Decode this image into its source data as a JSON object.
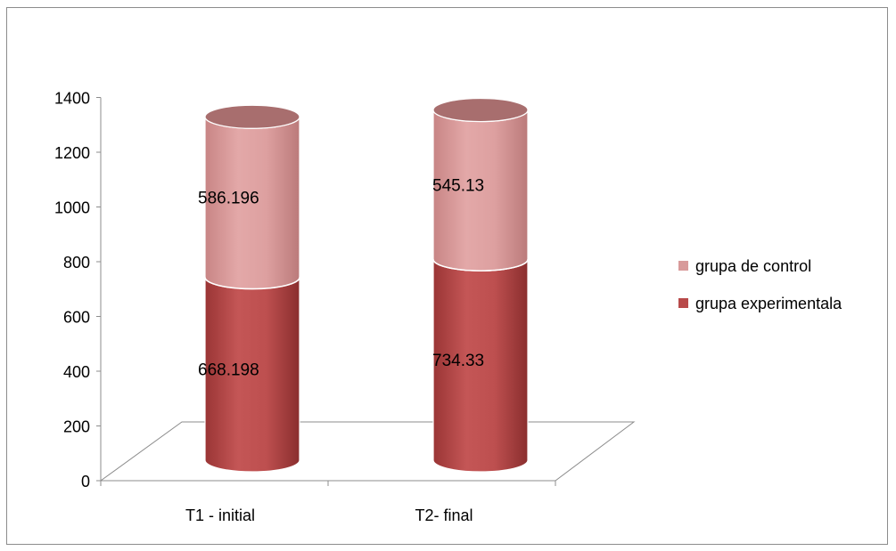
{
  "chart_data": {
    "type": "bar",
    "stacked": true,
    "style": "3d-cylinder",
    "categories": [
      "T1 - initial",
      "T2- final"
    ],
    "series": [
      {
        "name": "grupa experimentala",
        "values": [
          668.198,
          734.33
        ],
        "labels": [
          "668.198",
          "734.33"
        ],
        "color": "#b84a4a"
      },
      {
        "name": "grupa de control",
        "values": [
          586.196,
          545.13
        ],
        "labels": [
          "586.196",
          "545.13"
        ],
        "color": "#d89a9a"
      }
    ],
    "ylim": [
      0,
      1400
    ],
    "yticks": [
      "0",
      "200",
      "400",
      "600",
      "800",
      "1000",
      "1200",
      "1400"
    ],
    "ytick_values": [
      0,
      200,
      400,
      600,
      800,
      1000,
      1200,
      1400
    ],
    "grid": false,
    "legend_position": "right",
    "axis_color": "#8c8c8c",
    "top_color": "#a86e6e"
  }
}
